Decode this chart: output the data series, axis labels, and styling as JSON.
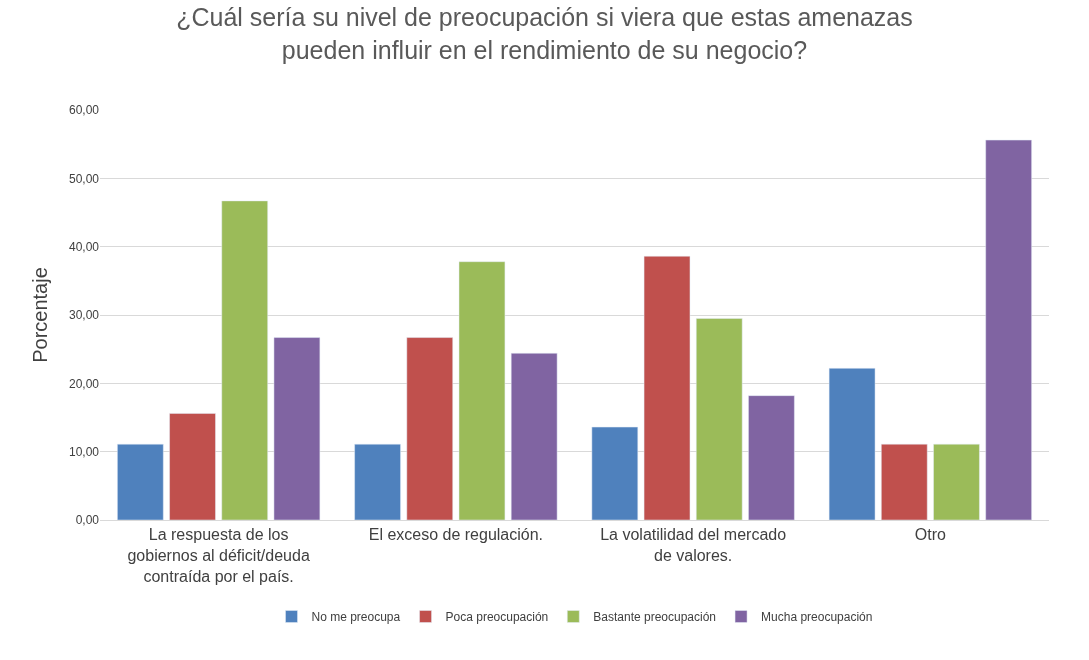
{
  "chart_data": {
    "type": "bar",
    "title": "¿Cuál sería su nivel de preocupación si viera que estas amenazas pueden influir en el rendimiento de su negocio?",
    "ylabel": "Porcentaje",
    "categories": [
      "La respuesta de los gobiernos al déficit/deuda contraída por el país.",
      "El exceso de regulación.",
      "La volatilidad del mercado de valores.",
      "Otro"
    ],
    "series": [
      {
        "name": "No me preocupa",
        "color": "#4f81bd",
        "values": [
          11.1,
          11.1,
          13.6,
          22.2
        ]
      },
      {
        "name": "Poca preocupación",
        "color": "#c0504d",
        "values": [
          15.6,
          26.7,
          38.6,
          11.1
        ]
      },
      {
        "name": "Bastante preocupación",
        "color": "#9bbb59",
        "values": [
          46.7,
          37.8,
          29.5,
          11.1
        ]
      },
      {
        "name": "Mucha preocupación",
        "color": "#8064a2",
        "values": [
          26.7,
          24.4,
          18.2,
          55.6
        ]
      }
    ],
    "ylim": [
      0,
      60
    ],
    "yticks": [
      {
        "value": 0,
        "label": "0,00"
      },
      {
        "value": 10,
        "label": "10,00"
      },
      {
        "value": 20,
        "label": "20,00"
      },
      {
        "value": 30,
        "label": "30,00"
      },
      {
        "value": 40,
        "label": "40,00"
      },
      {
        "value": 50,
        "label": "50,00"
      },
      {
        "value": 60,
        "label": "60,00"
      }
    ],
    "grid": "y",
    "legend": "bottom"
  }
}
